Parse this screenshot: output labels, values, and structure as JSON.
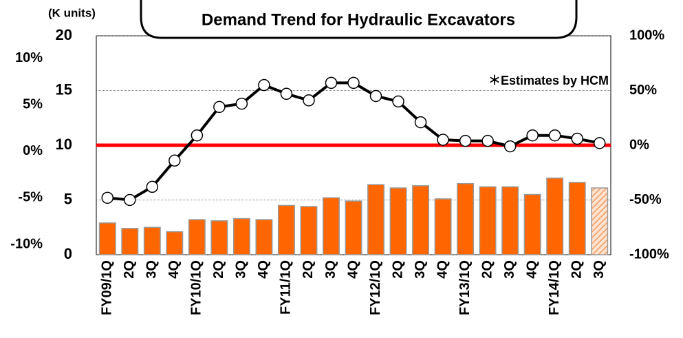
{
  "chart_data": {
    "type": "bar_line",
    "title": "Demand Trend for Hydraulic Excavators",
    "y_unit_label": "(K units)",
    "annotation": "＊Estimates by HCM",
    "categories": [
      "FY09/1Q",
      "2Q",
      "3Q",
      "4Q",
      "FY10/1Q",
      "2Q",
      "3Q",
      "4Q",
      "FY11/1Q",
      "2Q",
      "3Q",
      "4Q",
      "FY12/1Q",
      "2Q",
      "3Q",
      "4Q",
      "FY13/1Q",
      "2Q",
      "3Q",
      "4Q",
      "FY14/1Q",
      "2Q",
      "3Q"
    ],
    "series": [
      {
        "type": "bar",
        "color": "#ff6600",
        "hatched": [
          false,
          false,
          false,
          false,
          false,
          false,
          false,
          false,
          false,
          false,
          false,
          false,
          false,
          false,
          false,
          false,
          false,
          false,
          false,
          false,
          false,
          false,
          true
        ],
        "values": [
          2.9,
          2.4,
          2.5,
          2.1,
          3.2,
          3.1,
          3.3,
          3.2,
          4.5,
          4.4,
          5.2,
          4.9,
          6.4,
          6.1,
          6.3,
          5.1,
          6.5,
          6.2,
          6.2,
          5.5,
          7.0,
          6.6,
          6.1
        ]
      },
      {
        "type": "line",
        "axis": "y2",
        "color": "#000000",
        "values": [
          -48,
          -50,
          -38,
          -14,
          9,
          35,
          38,
          55,
          47,
          41,
          57,
          57,
          45,
          40,
          21,
          5,
          4,
          4,
          -1,
          9,
          9,
          6,
          2
        ]
      }
    ],
    "ylim": [
      0,
      20
    ],
    "yticks": [
      0,
      5,
      10,
      15,
      20
    ],
    "y2lim": [
      -100,
      100
    ],
    "y2ticks": [
      {
        "value": 100,
        "label": "100%"
      },
      {
        "value": 50,
        "label": "50%"
      },
      {
        "value": 0,
        "label": "0%"
      },
      {
        "value": -50,
        "label": "-50%"
      },
      {
        "value": -100,
        "label": "-100%"
      }
    ],
    "y3lim": [
      -11.1,
      12.4
    ],
    "y3ticks": [
      {
        "value": 10,
        "label": "10%"
      },
      {
        "value": 5,
        "label": "5%"
      },
      {
        "value": 0,
        "label": "0%"
      },
      {
        "value": -5,
        "label": "-5%"
      },
      {
        "value": -10,
        "label": "-10%"
      }
    ],
    "reference_line": {
      "axis": "y2",
      "value": 0,
      "color": "#ff0000"
    },
    "grid": true
  }
}
